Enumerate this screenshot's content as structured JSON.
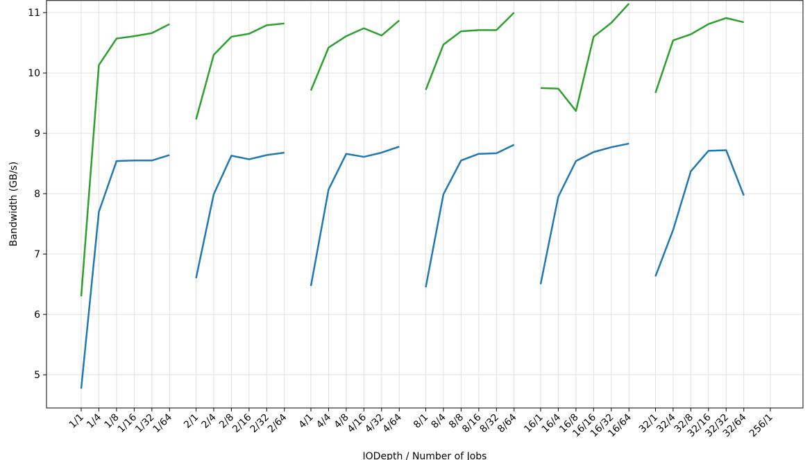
{
  "chart_data": {
    "type": "line",
    "x_label": "IODepth / Number of Jobs",
    "y_label": "Bandwidth (GB/s)",
    "categories": [
      "1/1",
      "1/4",
      "1/8",
      "1/16",
      "1/32",
      "1/64",
      "2/1",
      "2/4",
      "2/8",
      "2/16",
      "2/32",
      "2/64",
      "4/1",
      "4/4",
      "4/8",
      "4/16",
      "4/32",
      "4/64",
      "8/1",
      "8/4",
      "8/8",
      "8/16",
      "8/32",
      "8/64",
      "16/1",
      "16/4",
      "16/8",
      "16/16",
      "16/32",
      "16/64",
      "32/1",
      "32/4",
      "32/8",
      "32/16",
      "32/32",
      "32/64",
      "256/1"
    ],
    "series": [
      {
        "color": "#2ca02c",
        "values": [
          6.3,
          10.13,
          10.57,
          10.61,
          10.66,
          10.81,
          9.23,
          10.3,
          10.6,
          10.65,
          10.79,
          10.82,
          9.71,
          10.42,
          10.61,
          10.74,
          10.62,
          10.87,
          9.72,
          10.47,
          10.69,
          10.71,
          10.71,
          11.0,
          9.75,
          9.74,
          9.37,
          10.6,
          10.83,
          11.15,
          9.67,
          10.54,
          10.64,
          10.81,
          10.91,
          10.84,
          null
        ]
      },
      {
        "color": "#1f77b4",
        "values": [
          4.77,
          7.7,
          8.54,
          8.55,
          8.55,
          8.64,
          6.6,
          7.99,
          8.63,
          8.57,
          8.64,
          8.68,
          6.47,
          8.07,
          8.66,
          8.61,
          8.68,
          8.78,
          6.45,
          7.99,
          8.55,
          8.66,
          8.67,
          8.81,
          6.5,
          7.95,
          8.54,
          8.69,
          8.77,
          8.83,
          6.63,
          7.4,
          8.37,
          8.71,
          8.72,
          7.97,
          null
        ]
      }
    ],
    "ylim": [
      4.45,
      11.2
    ],
    "yticks": [
      5,
      6,
      7,
      8,
      9,
      10,
      11
    ],
    "grid": true
  }
}
